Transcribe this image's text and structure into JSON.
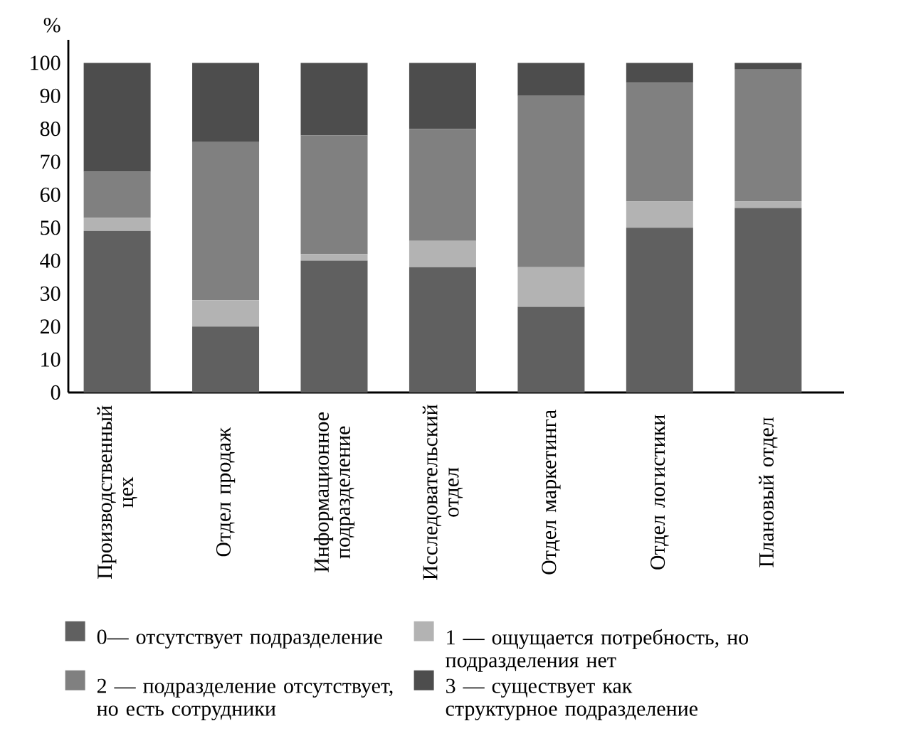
{
  "chart_data": {
    "type": "bar",
    "stacked": true,
    "ylabel": "%",
    "categories": [
      "Производственный цех",
      "Отдел продаж",
      "Информационное подразделение",
      "Исследовательский отдел",
      "Отдел маркетинга",
      "Отдел логистики",
      "Плановый отдел"
    ],
    "series": [
      {
        "name": "0— отсутствует подразделение",
        "color": "#606060",
        "values": [
          49,
          20,
          40,
          38,
          26,
          50,
          56
        ]
      },
      {
        "name": "1 — ощущается потребность, но подразделения нет",
        "color": "#b3b3b3",
        "values": [
          4,
          8,
          2,
          8,
          12,
          8,
          2
        ]
      },
      {
        "name": "2 — подразделение отсутствует, но есть сотрудники",
        "color": "#808080",
        "values": [
          14,
          48,
          36,
          34,
          52,
          36,
          40
        ]
      },
      {
        "name": "3 — существует как структурное подразделение",
        "color": "#4d4d4d",
        "values": [
          33,
          24,
          22,
          20,
          10,
          6,
          2
        ]
      }
    ],
    "ylim": [
      0,
      107
    ],
    "yticks": [
      0,
      10,
      20,
      30,
      40,
      50,
      60,
      70,
      80,
      90,
      100
    ],
    "legend": "bottom"
  }
}
